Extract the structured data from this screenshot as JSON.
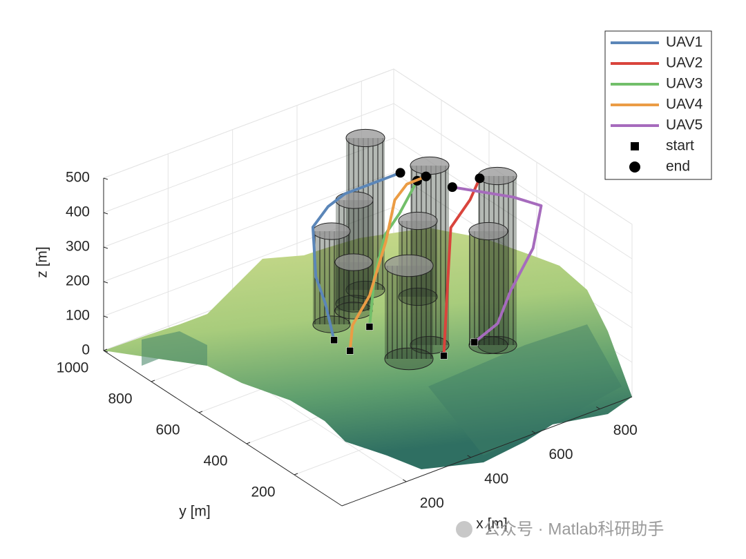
{
  "chart_data": {
    "type": "line3d",
    "xlabel": "x [m]",
    "ylabel": "y [m]",
    "zlabel": "z [m]",
    "xlim": [
      0,
      900
    ],
    "ylim": [
      0,
      1000
    ],
    "zlim": [
      0,
      500
    ],
    "xticks": [
      200,
      400,
      600,
      800
    ],
    "yticks": [
      200,
      400,
      600,
      800,
      1000
    ],
    "zticks": [
      0,
      100,
      200,
      300,
      400,
      500
    ],
    "grid": true,
    "legend_position": "northeast",
    "series": [
      {
        "name": "UAV1",
        "color": "#5b86b8",
        "x": [
          360,
          370,
          370,
          420,
          460,
          490,
          610
        ],
        "y": [
          520,
          570,
          610,
          690,
          680,
          650,
          580
        ],
        "z": [
          120,
          200,
          260,
          350,
          400,
          440,
          490
        ]
      },
      {
        "name": "UAV2",
        "color": "#d9443c",
        "x": [
          560,
          630,
          700,
          760,
          760
        ],
        "y": [
          330,
          410,
          490,
          490,
          450
        ],
        "z": [
          90,
          220,
          340,
          400,
          480
        ]
      },
      {
        "name": "UAV3",
        "color": "#72bf6a",
        "x": [
          470,
          530,
          570,
          600,
          640
        ],
        "y": [
          520,
          580,
          590,
          570,
          550
        ],
        "z": [
          120,
          220,
          320,
          380,
          470
        ]
      },
      {
        "name": "UAV4",
        "color": "#eb9c45",
        "x": [
          380,
          410,
          470,
          550,
          600,
          630,
          660
        ],
        "y": [
          480,
          510,
          520,
          560,
          590,
          580,
          540
        ],
        "z": [
          100,
          150,
          210,
          320,
          410,
          450,
          480
        ]
      },
      {
        "name": "UAV5",
        "color": "#a66bbd",
        "x": [
          640,
          690,
          730,
          800,
          840,
          790,
          690
        ],
        "y": [
          310,
          280,
          280,
          280,
          300,
          350,
          470
        ],
        "z": [
          110,
          160,
          240,
          340,
          440,
          460,
          470
        ]
      }
    ],
    "marker_legend": [
      "start",
      "end"
    ]
  },
  "watermark": "公众号 · Matlab科研助手"
}
